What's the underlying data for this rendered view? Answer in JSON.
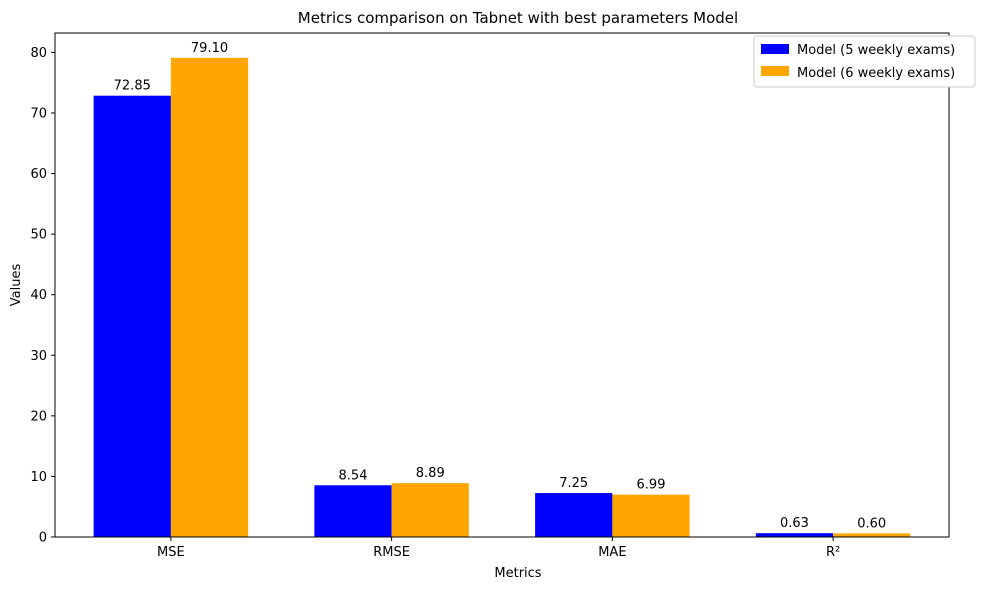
{
  "chart_data": {
    "type": "bar",
    "title": "Metrics comparison on Tabnet with best parameters Model",
    "xlabel": "Metrics",
    "ylabel": "Values",
    "categories": [
      "MSE",
      "RMSE",
      "MAE",
      "R²"
    ],
    "series": [
      {
        "name": "Model (5 weekly exams)",
        "color": "#0000ff",
        "values": [
          72.85,
          8.54,
          7.25,
          0.63
        ],
        "labels": [
          "72.85",
          "8.54",
          "7.25",
          "0.63"
        ]
      },
      {
        "name": "Model (6 weekly exams)",
        "color": "#ffa500",
        "values": [
          79.1,
          8.89,
          6.99,
          0.6
        ],
        "labels": [
          "79.10",
          "8.89",
          "6.99",
          "0.60"
        ]
      }
    ],
    "ylim": [
      0,
      83.2
    ],
    "yticks": [
      0,
      10,
      20,
      30,
      40,
      50,
      60,
      70,
      80
    ],
    "grid": false,
    "legend_position": "top-right"
  }
}
